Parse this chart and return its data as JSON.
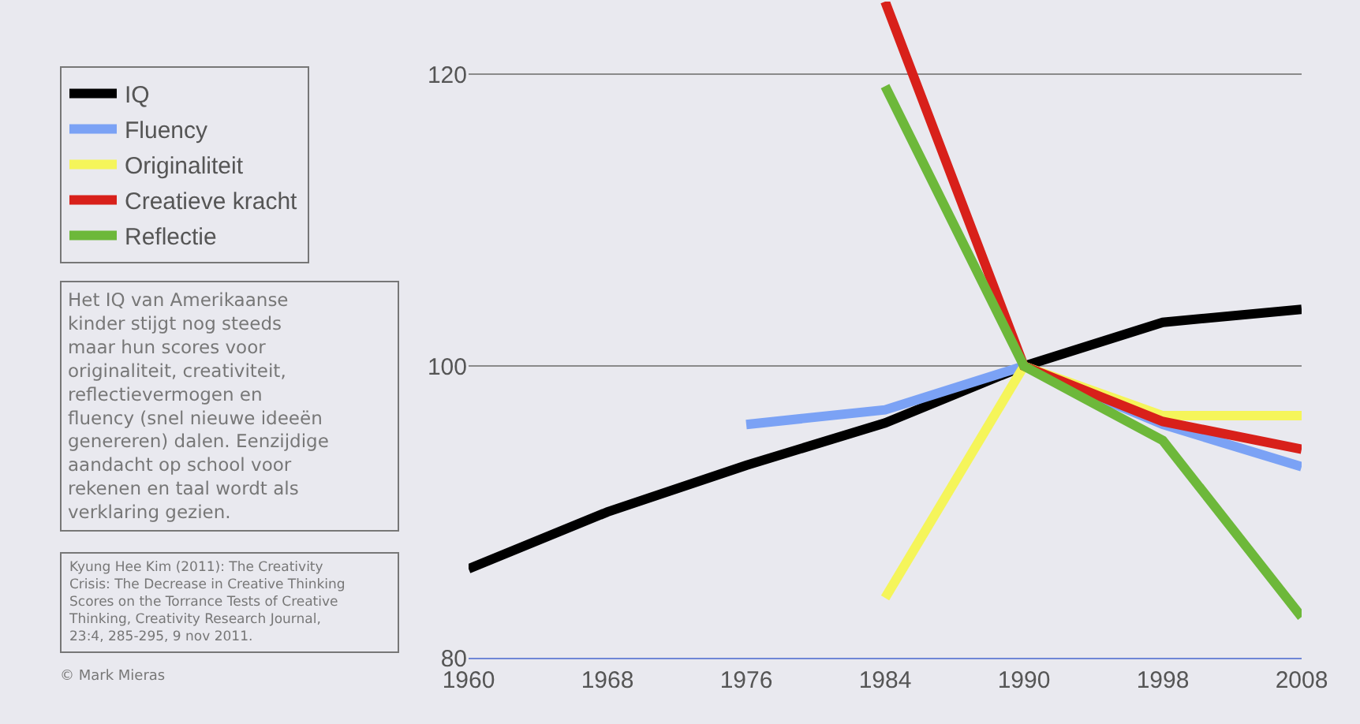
{
  "chart_data": {
    "type": "line",
    "categories": [
      "1960",
      "1968",
      "1976",
      "1984",
      "1990",
      "1998",
      "2008"
    ],
    "series": [
      {
        "name": "IQ",
        "color": "#000000",
        "values": [
          86.1,
          90.0,
          93.2,
          96.1,
          100,
          103.0,
          103.9
        ]
      },
      {
        "name": "Fluency",
        "color": "#7ba2f5",
        "values": [
          null,
          null,
          96.0,
          97.0,
          100,
          96.0,
          93.1
        ]
      },
      {
        "name": "Originaliteit",
        "color": "#f5f55a",
        "values": [
          null,
          null,
          null,
          84.1,
          100,
          96.6,
          96.6
        ]
      },
      {
        "name": "Creatieve kracht",
        "color": "#d8201a",
        "values": [
          null,
          null,
          null,
          125,
          100,
          96.2,
          94.3
        ]
      },
      {
        "name": "Reflectie",
        "color": "#6db83a",
        "values": [
          null,
          null,
          null,
          119.2,
          100,
          94.9,
          82.8
        ]
      }
    ],
    "ylim": [
      80,
      125
    ],
    "yticks": [
      80,
      100,
      120
    ],
    "grid": "y",
    "legend": "top left",
    "marker": "none",
    "line_style": "solid",
    "annotations": [
      "Het IQ van Amerikaanse\nkinder stijgt nog steeds\nmaar hun scores voor\noriginaliteit, creativiteit,\nreflectievermogen en\nfluency (snel nieuwe ideeën\ngenereren) dalen. Eenzijdige\naandacht op school voor\nrekenen en taal wordt als\nverklaring gezien.",
      "Kyung Hee Kim (2011): The Creativity\nCrisis: The Decrease in Creative Thinking\nScores on the Torrance Tests of Creative\nThinking, Creativity Research Journal,\n23:4, 285-295, 9 nov 2011.",
      "© Mark Mieras"
    ]
  }
}
